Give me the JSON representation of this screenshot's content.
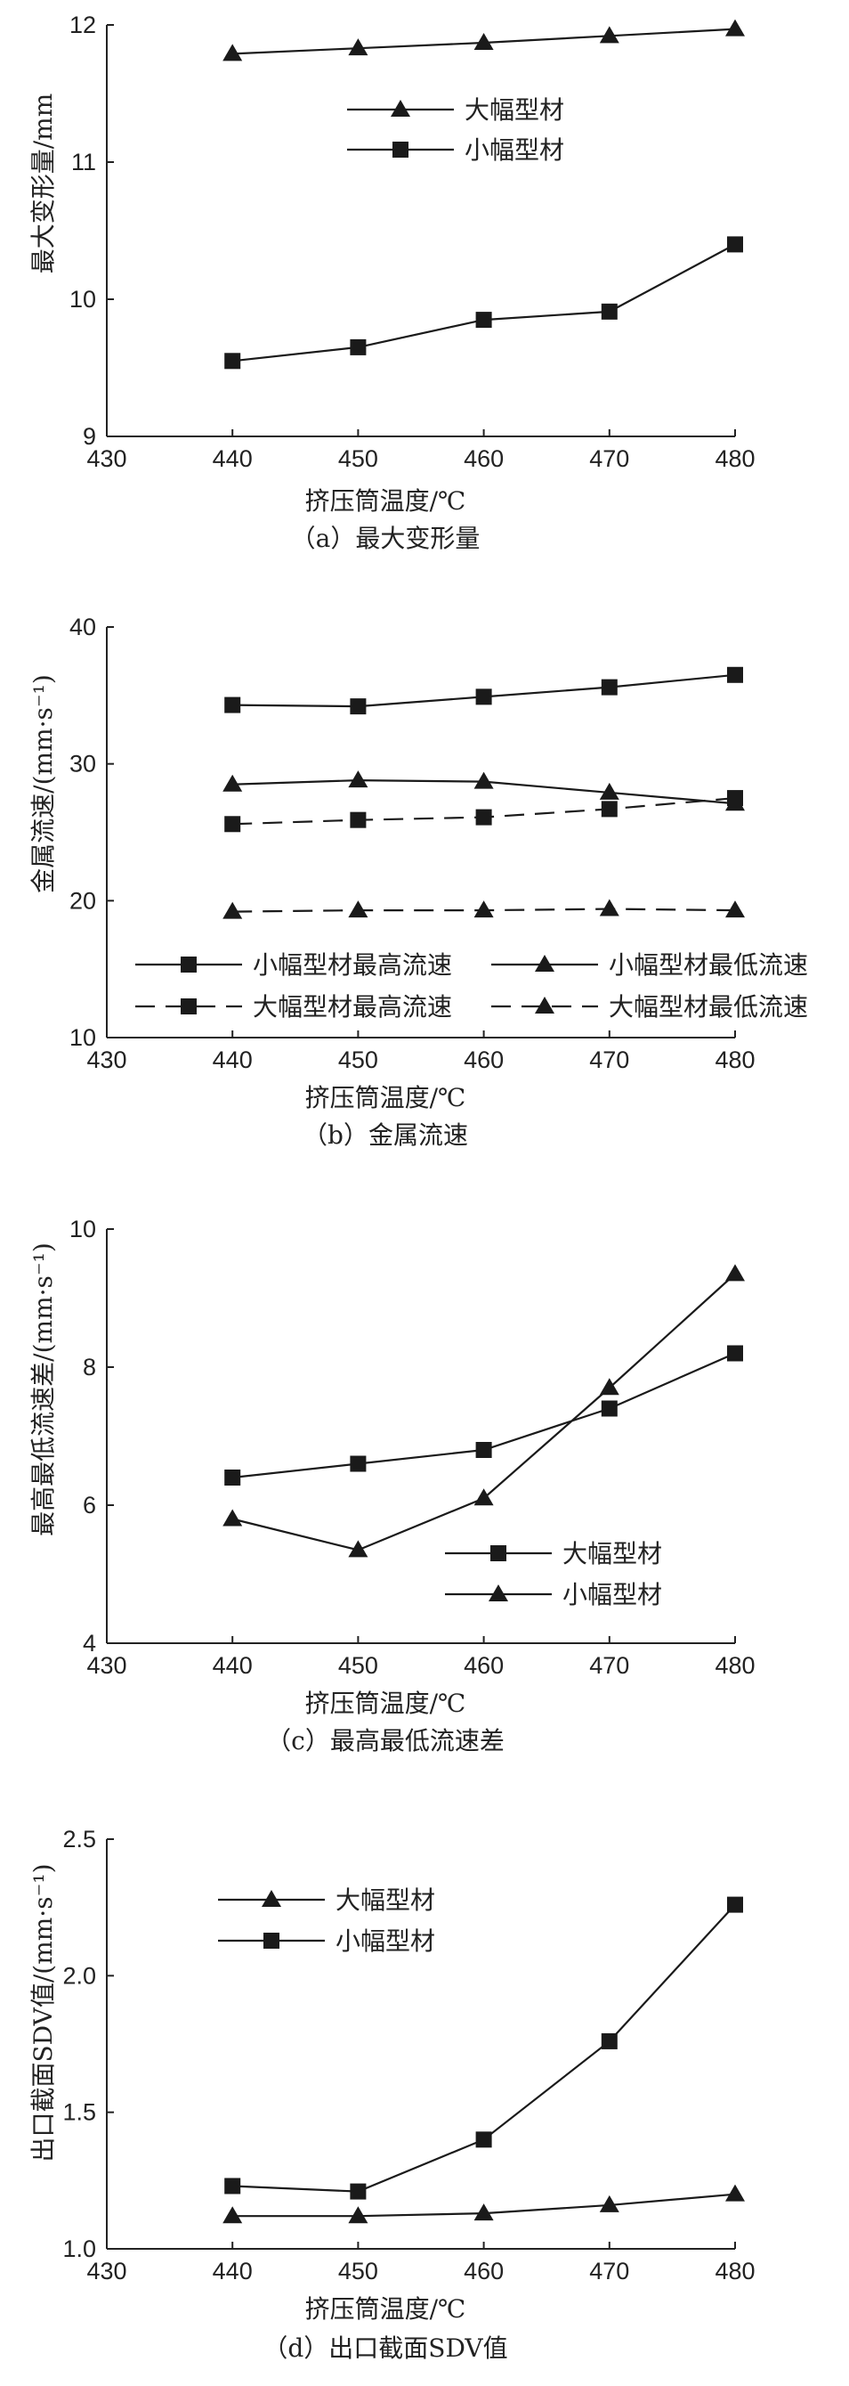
{
  "chart_data": [
    {
      "type": "line",
      "caption": "（a）最大变形量",
      "xlabel": "挤压筒温度/℃",
      "ylabel": "最大变形量/mm",
      "x": [
        440,
        450,
        460,
        470,
        480
      ],
      "xlim": [
        430,
        480
      ],
      "xticks": [
        430,
        440,
        450,
        460,
        470,
        480
      ],
      "ylim": [
        9,
        12
      ],
      "yticks": [
        9,
        10,
        11,
        12
      ],
      "legend_position": "top-center",
      "series": [
        {
          "name": "大幅型材",
          "marker": "triangle",
          "dash": "solid",
          "values": [
            11.79,
            11.83,
            11.87,
            11.92,
            11.97
          ]
        },
        {
          "name": "小幅型材",
          "marker": "square",
          "dash": "solid",
          "values": [
            9.55,
            9.65,
            9.85,
            9.91,
            10.4
          ]
        }
      ]
    },
    {
      "type": "line",
      "caption": "（b）金属流速",
      "xlabel": "挤压筒温度/℃",
      "ylabel": "金属流速/(mm·s⁻¹)",
      "x": [
        440,
        450,
        460,
        470,
        480
      ],
      "xlim": [
        430,
        480
      ],
      "xticks": [
        430,
        440,
        450,
        460,
        470,
        480
      ],
      "ylim": [
        10,
        40
      ],
      "yticks": [
        10,
        20,
        30,
        40
      ],
      "legend_position": "bottom",
      "series": [
        {
          "name": "小幅型材最高流速",
          "marker": "square",
          "dash": "solid",
          "values": [
            34.3,
            34.2,
            34.9,
            35.6,
            36.5
          ]
        },
        {
          "name": "小幅型材最低流速",
          "marker": "triangle",
          "dash": "solid",
          "values": [
            28.5,
            28.8,
            28.7,
            27.9,
            27.1
          ]
        },
        {
          "name": "大幅型材最高流速",
          "marker": "square",
          "dash": "dashed",
          "values": [
            25.6,
            25.9,
            26.1,
            26.7,
            27.5
          ]
        },
        {
          "name": "大幅型材最低流速",
          "marker": "triangle",
          "dash": "dashed",
          "values": [
            19.2,
            19.3,
            19.3,
            19.4,
            19.3
          ]
        }
      ]
    },
    {
      "type": "line",
      "caption": "（c）最高最低流速差",
      "xlabel": "挤压筒温度/℃",
      "ylabel": "最高最低流速差/(mm·s⁻¹)",
      "x": [
        440,
        450,
        460,
        470,
        480
      ],
      "xlim": [
        430,
        480
      ],
      "xticks": [
        430,
        440,
        450,
        460,
        470,
        480
      ],
      "ylim": [
        4,
        10
      ],
      "yticks": [
        4,
        6,
        8,
        10
      ],
      "legend_position": "bottom-right",
      "series": [
        {
          "name": "大幅型材",
          "marker": "square",
          "dash": "solid",
          "values": [
            6.4,
            6.6,
            6.8,
            7.4,
            8.2
          ]
        },
        {
          "name": "小幅型材",
          "marker": "triangle",
          "dash": "solid",
          "values": [
            5.8,
            5.35,
            6.1,
            7.7,
            9.35
          ]
        }
      ]
    },
    {
      "type": "line",
      "caption": "（d）出口截面SDV值",
      "xlabel": "挤压筒温度/℃",
      "ylabel": "出口截面SDV值/(mm·s⁻¹)",
      "x": [
        440,
        450,
        460,
        470,
        480
      ],
      "xlim": [
        430,
        480
      ],
      "xticks": [
        430,
        440,
        450,
        460,
        470,
        480
      ],
      "ylim": [
        1.0,
        2.5
      ],
      "yticks": [
        "1.0",
        "1.5",
        "2.0",
        "2.5"
      ],
      "legend_position": "top-left",
      "series": [
        {
          "name": "大幅型材",
          "marker": "triangle",
          "dash": "solid",
          "values": [
            1.12,
            1.12,
            1.13,
            1.16,
            1.2
          ]
        },
        {
          "name": "小幅型材",
          "marker": "square",
          "dash": "solid",
          "values": [
            1.23,
            1.21,
            1.4,
            1.76,
            2.26
          ]
        }
      ]
    }
  ]
}
